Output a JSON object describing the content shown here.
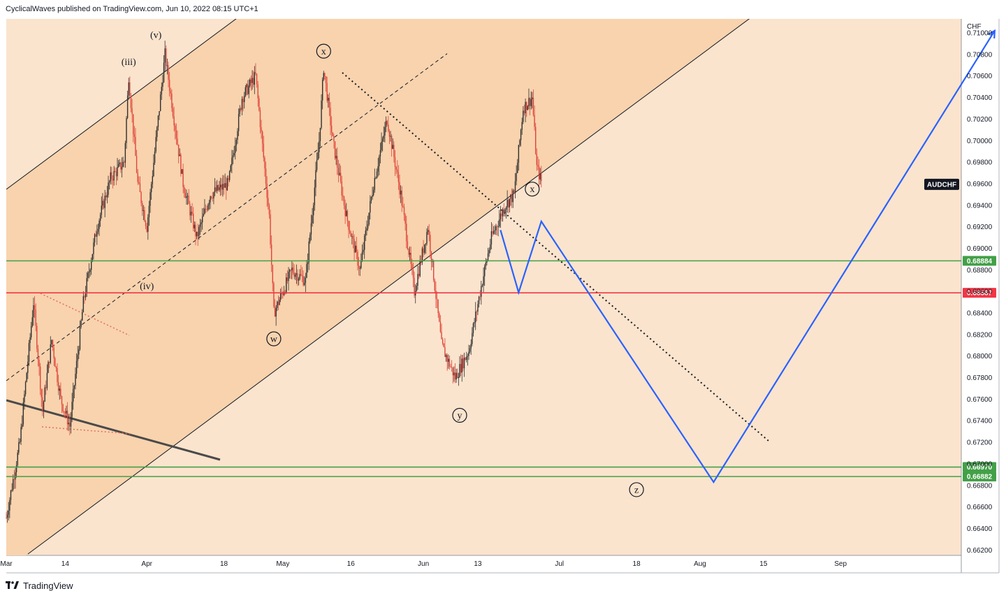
{
  "header": {
    "text": "CyclicalWaves published on TradingView.com, Jun 10, 2022 08:15 UTC+1"
  },
  "footer": {
    "logo_text": "TradingView",
    "logo_icon": "tradingview-logo-icon"
  },
  "colors": {
    "background": "#fbe4cd",
    "channel_fill": "#f8d3ae",
    "candle_up": "#2f2f2f",
    "candle_down": "#e0443a",
    "green_line": "#43a047",
    "red_line": "#f23645",
    "projection": "#2962ff",
    "symbol_tag": "#131722"
  },
  "chart_data": {
    "type": "candlestick",
    "symbol": "AUDCHF",
    "currency": "CHF",
    "y_axis": {
      "range": [
        0.6615,
        0.7113
      ],
      "ticks": [
        "0.71000",
        "0.70800",
        "0.70600",
        "0.70400",
        "0.70200",
        "0.70000",
        "0.69800",
        "0.69600",
        "0.69400",
        "0.69200",
        "0.69000",
        "0.68800",
        "0.68600",
        "0.68400",
        "0.68200",
        "0.68000",
        "0.67800",
        "0.67600",
        "0.67400",
        "0.67200",
        "0.67000",
        "0.66800",
        "0.66600",
        "0.66400",
        "0.66200"
      ]
    },
    "x_axis": {
      "ticks": [
        {
          "label": "Mar",
          "date": "2022-03-01"
        },
        {
          "label": "14",
          "date": "2022-03-14"
        },
        {
          "label": "Apr",
          "date": "2022-04-01"
        },
        {
          "label": "18",
          "date": "2022-04-18"
        },
        {
          "label": "May",
          "date": "2022-05-01"
        },
        {
          "label": "16",
          "date": "2022-05-16"
        },
        {
          "label": "Jun",
          "date": "2022-06-01"
        },
        {
          "label": "13",
          "date": "2022-06-13"
        },
        {
          "label": "Jul",
          "date": "2022-07-01"
        },
        {
          "label": "18",
          "date": "2022-07-18"
        },
        {
          "label": "Aug",
          "date": "2022-08-01"
        },
        {
          "label": "15",
          "date": "2022-08-15"
        },
        {
          "label": "Sep",
          "date": "2022-09-01"
        }
      ]
    },
    "price_path": [
      {
        "date": "2022-03-01",
        "price": 0.665
      },
      {
        "date": "2022-03-04",
        "price": 0.672
      },
      {
        "date": "2022-03-07",
        "price": 0.685
      },
      {
        "date": "2022-03-09",
        "price": 0.675
      },
      {
        "date": "2022-03-11",
        "price": 0.6815
      },
      {
        "date": "2022-03-13",
        "price": 0.676
      },
      {
        "date": "2022-03-15",
        "price": 0.6735
      },
      {
        "date": "2022-03-18",
        "price": 0.685
      },
      {
        "date": "2022-03-21",
        "price": 0.692
      },
      {
        "date": "2022-03-24",
        "price": 0.6965
      },
      {
        "date": "2022-03-27",
        "price": 0.698
      },
      {
        "date": "2022-03-28",
        "price": 0.706
      },
      {
        "date": "2022-03-30",
        "price": 0.696
      },
      {
        "date": "2022-04-01",
        "price": 0.692
      },
      {
        "date": "2022-04-03",
        "price": 0.7
      },
      {
        "date": "2022-04-05",
        "price": 0.708
      },
      {
        "date": "2022-04-09",
        "price": 0.696
      },
      {
        "date": "2022-04-12",
        "price": 0.691
      },
      {
        "date": "2022-04-15",
        "price": 0.695
      },
      {
        "date": "2022-04-19",
        "price": 0.696
      },
      {
        "date": "2022-04-22",
        "price": 0.704
      },
      {
        "date": "2022-04-25",
        "price": 0.706
      },
      {
        "date": "2022-04-28",
        "price": 0.693
      },
      {
        "date": "2022-04-29",
        "price": 0.684
      },
      {
        "date": "2022-05-03",
        "price": 0.688
      },
      {
        "date": "2022-05-06",
        "price": 0.687
      },
      {
        "date": "2022-05-09",
        "price": 0.7
      },
      {
        "date": "2022-05-10",
        "price": 0.7068
      },
      {
        "date": "2022-05-12",
        "price": 0.7
      },
      {
        "date": "2022-05-15",
        "price": 0.693
      },
      {
        "date": "2022-05-18",
        "price": 0.688
      },
      {
        "date": "2022-05-21",
        "price": 0.696
      },
      {
        "date": "2022-05-24",
        "price": 0.702
      },
      {
        "date": "2022-05-27",
        "price": 0.695
      },
      {
        "date": "2022-05-30",
        "price": 0.686
      },
      {
        "date": "2022-06-02",
        "price": 0.692
      },
      {
        "date": "2022-06-05",
        "price": 0.681
      },
      {
        "date": "2022-06-08",
        "price": 0.678
      },
      {
        "date": "2022-06-11",
        "price": 0.6805
      },
      {
        "date": "2022-06-14",
        "price": 0.687
      },
      {
        "date": "2022-06-16",
        "price": 0.691
      },
      {
        "date": "2022-06-19",
        "price": 0.694
      },
      {
        "date": "2022-06-21",
        "price": 0.695
      },
      {
        "date": "2022-06-23",
        "price": 0.703
      },
      {
        "date": "2022-06-25",
        "price": 0.704
      },
      {
        "date": "2022-06-26",
        "price": 0.6975
      },
      {
        "date": "2022-06-27",
        "price": 0.6962
      }
    ],
    "horizontal_levels": [
      {
        "price": 0.68884,
        "label": "0.68884",
        "color": "#43a047"
      },
      {
        "price": 0.68587,
        "label": "0.68587",
        "color": "#f23645"
      },
      {
        "price": 0.6697,
        "label": "0.66970",
        "color": "#43a047"
      },
      {
        "price": 0.66882,
        "label": "0.66882",
        "color": "#43a047"
      }
    ],
    "last_price_tag": {
      "label": "AUDCHF",
      "price": 0.6962
    },
    "wave_labels": [
      {
        "text": "(v)",
        "date": "2022-04-03",
        "price": 0.7098,
        "circled": false
      },
      {
        "text": "(iii)",
        "date": "2022-03-28",
        "price": 0.7073,
        "circled": false
      },
      {
        "text": "(iv)",
        "date": "2022-04-01",
        "price": 0.6865,
        "circled": false
      },
      {
        "text": "x",
        "date": "2022-05-10",
        "price": 0.7083,
        "circled": true
      },
      {
        "text": "w",
        "date": "2022-04-29",
        "price": 0.6816,
        "circled": true
      },
      {
        "text": "y",
        "date": "2022-06-09",
        "price": 0.6745,
        "circled": true
      },
      {
        "text": "x",
        "date": "2022-06-25",
        "price": 0.6955,
        "circled": true
      },
      {
        "text": "z",
        "date": "2022-07-18",
        "price": 0.6676,
        "circled": true
      }
    ],
    "projection_path": [
      {
        "date": "2022-06-18",
        "price": 0.6917
      },
      {
        "date": "2022-06-22",
        "price": 0.6859
      },
      {
        "date": "2022-06-27",
        "price": 0.6925
      },
      {
        "date": "2022-08-04",
        "price": 0.6683
      },
      {
        "date": "2022-10-05",
        "price": 0.7102
      }
    ]
  }
}
